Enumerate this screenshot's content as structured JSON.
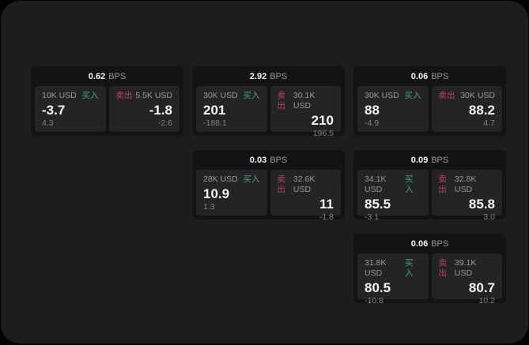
{
  "colors": {
    "bg_outer": "#030303",
    "window_bg": "#1d1d1f",
    "card_bg": "#131315",
    "panel_bg": "#242427",
    "buy_green": "#3fa768",
    "sell_red": "#bc4059",
    "label_gray": "#98989d",
    "value_white": "#f4f4f6",
    "sub_gray": "#7f7f85"
  },
  "labels": {
    "bps_unit": "BPS",
    "buy": "买入",
    "sell": "卖出"
  },
  "cards": [
    {
      "col": 1,
      "row": 1,
      "bps": "0.62",
      "buy": {
        "size": "10K USD",
        "value": "-3.7",
        "sub": "4.3"
      },
      "sell": {
        "size": "5.5K USD",
        "value": "-1.8",
        "sub": "-2.6"
      }
    },
    {
      "col": 2,
      "row": 1,
      "bps": "2.92",
      "buy": {
        "size": "30K USD",
        "value": "201",
        "sub": "-188.1"
      },
      "sell": {
        "size": "30.1K USD",
        "value": "210",
        "sub": "196.5"
      }
    },
    {
      "col": 3,
      "row": 1,
      "bps": "0.06",
      "buy": {
        "size": "30K USD",
        "value": "88",
        "sub": "-4.9"
      },
      "sell": {
        "size": "30K USD",
        "value": "88.2",
        "sub": "4.7"
      }
    },
    {
      "col": 2,
      "row": 2,
      "bps": "0.03",
      "buy": {
        "size": "28K USD",
        "value": "10.9",
        "sub": "1.3"
      },
      "sell": {
        "size": "32.6K USD",
        "value": "11",
        "sub": "-1.8"
      }
    },
    {
      "col": 3,
      "row": 2,
      "bps": "0.09",
      "buy": {
        "size": "34.1K USD",
        "value": "85.5",
        "sub": "-3.1"
      },
      "sell": {
        "size": "32.8K USD",
        "value": "85.8",
        "sub": "3.0"
      }
    },
    {
      "col": 3,
      "row": 3,
      "bps": "0.06",
      "buy": {
        "size": "31.8K USD",
        "value": "80.5",
        "sub": "-10.8"
      },
      "sell": {
        "size": "39.1K USD",
        "value": "80.7",
        "sub": "10.2"
      }
    }
  ]
}
